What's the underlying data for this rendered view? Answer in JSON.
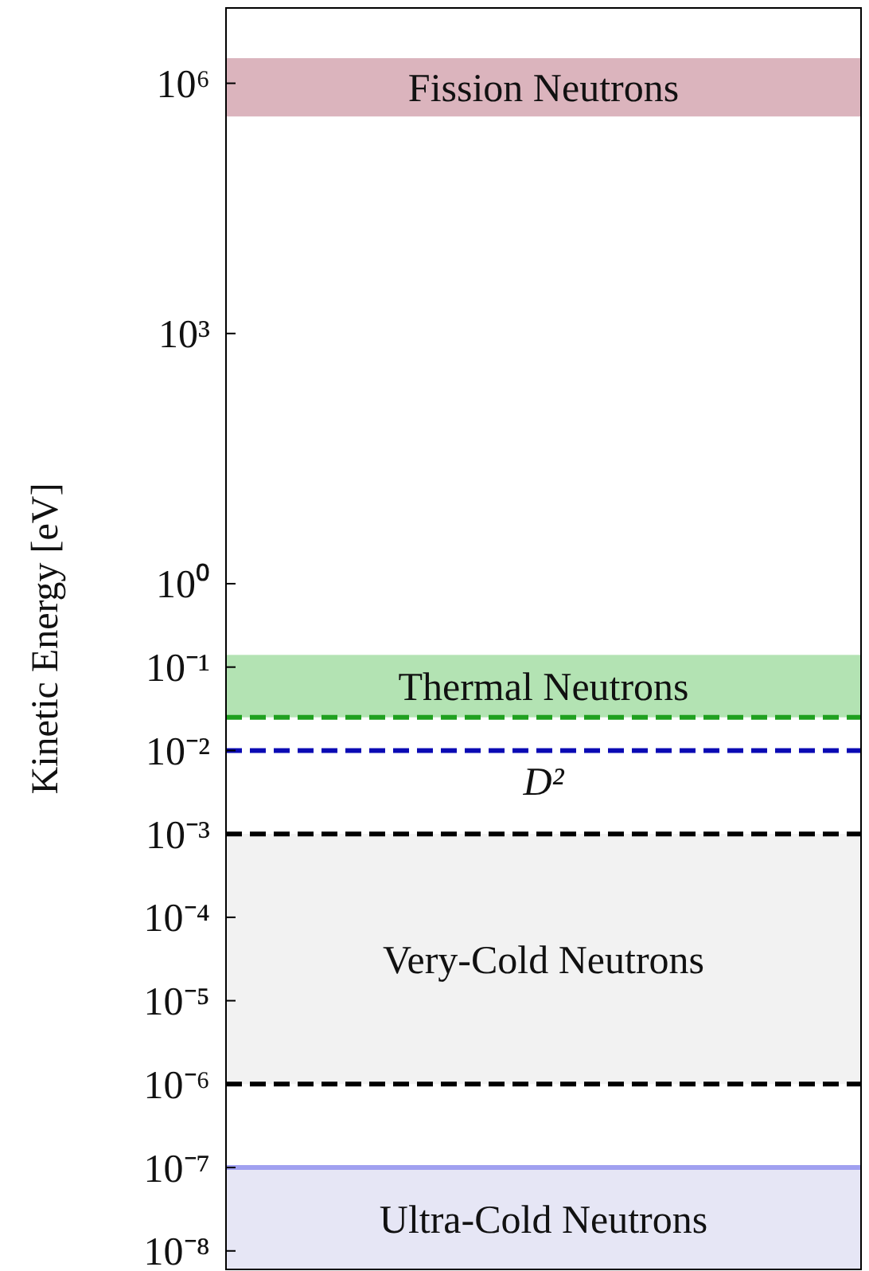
{
  "chart_data": {
    "type": "line",
    "ylabel": "Kinetic Energy [eV]",
    "log": "y",
    "ylim": [
      6e-09,
      8000000.0
    ],
    "categories": [
      null
    ],
    "yticks": [
      {
        "value": 1000000.0,
        "label": "10⁶"
      },
      {
        "value": 1000.0,
        "label": "10³"
      },
      {
        "value": 1,
        "label": "10⁰"
      },
      {
        "value": 0.1,
        "label": "10⁻¹"
      },
      {
        "value": 0.01,
        "label": "10⁻²"
      },
      {
        "value": 0.001,
        "label": "10⁻³"
      },
      {
        "value": 0.0001,
        "label": "10⁻⁴"
      },
      {
        "value": 1e-05,
        "label": "10⁻⁵"
      },
      {
        "value": 1e-06,
        "label": "10⁻⁶"
      },
      {
        "value": 1e-07,
        "label": "10⁻⁷"
      },
      {
        "value": 1e-08,
        "label": "10⁻⁸"
      }
    ],
    "bands": [
      {
        "axis": "y",
        "from": 400000.0,
        "to": 2000000.0,
        "label": "Fission Neutrons",
        "color": "#dbb4bd"
      },
      {
        "axis": "y",
        "from": 0.025,
        "to": 0.14,
        "label": "Thermal Neutrons",
        "color": "#b3e3b3"
      },
      {
        "axis": "y",
        "from": 1e-06,
        "to": 0.001,
        "label": "Very-Cold Neutrons",
        "color": "#f2f2f2"
      },
      {
        "axis": "y",
        "from": 6e-09,
        "to": 1e-07,
        "label": "Ultra-Cold Neutrons",
        "color": "#e6e6f5"
      }
    ],
    "ref_lines": [
      {
        "axis": "y",
        "value": 0.025,
        "label": null,
        "color": "#1fa01f",
        "line_style": "dashed"
      },
      {
        "axis": "y",
        "value": 0.01,
        "label": "D²",
        "color": "#0a0ab4",
        "line_style": "dashed"
      },
      {
        "axis": "y",
        "value": 0.001,
        "label": null,
        "color": "#000000",
        "line_style": "dashed"
      },
      {
        "axis": "y",
        "value": 1e-06,
        "label": null,
        "color": "#000000",
        "line_style": "dashed"
      },
      {
        "axis": "y",
        "value": 1e-07,
        "label": null,
        "color": "#a0a0f0",
        "line_style": "solid"
      }
    ]
  }
}
